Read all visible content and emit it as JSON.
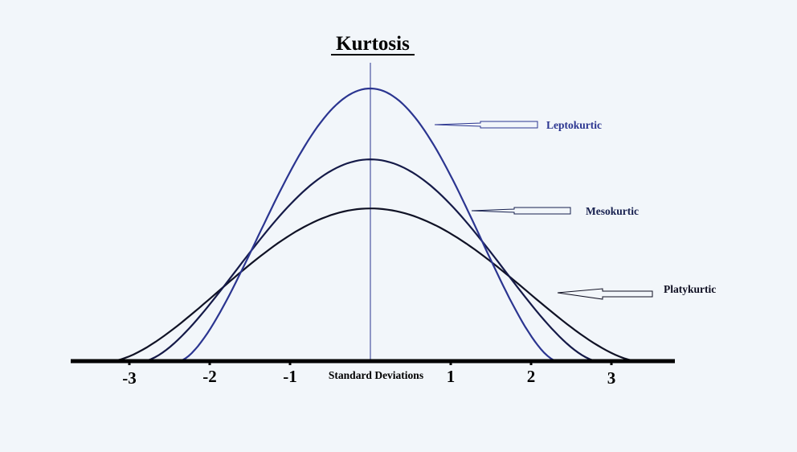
{
  "title": "Kurtosis",
  "x_axis_label": "Standard Deviations",
  "ticks": [
    {
      "value": -3,
      "label": "-3"
    },
    {
      "value": -2,
      "label": "-2"
    },
    {
      "value": -1,
      "label": "-1"
    },
    {
      "value": 1,
      "label": "1"
    },
    {
      "value": 2,
      "label": "2"
    },
    {
      "value": 3,
      "label": "3"
    }
  ],
  "curves": [
    {
      "id": "leptokurtic",
      "label": "Leptokurtic",
      "color": "#2b3590",
      "x_range": [
        -2.38,
        2.32
      ],
      "peak": 1.0
    },
    {
      "id": "mesokurtic",
      "label": "Mesokurtic",
      "color": "#151a48",
      "x_range": [
        -2.82,
        2.82
      ],
      "peak": 0.74
    },
    {
      "id": "platykurtic",
      "label": "Platykurtic",
      "color": "#101225",
      "x_range": [
        -3.22,
        3.32
      ],
      "peak": 0.56
    }
  ],
  "colors": {
    "background": "#f2f6fa",
    "axis": "#000000",
    "center_line": "#2b3590",
    "leptokurtic_label": "#2b3590",
    "mesokurtic_label": "#17204f",
    "platykurtic_label": "#0d0d20"
  }
}
